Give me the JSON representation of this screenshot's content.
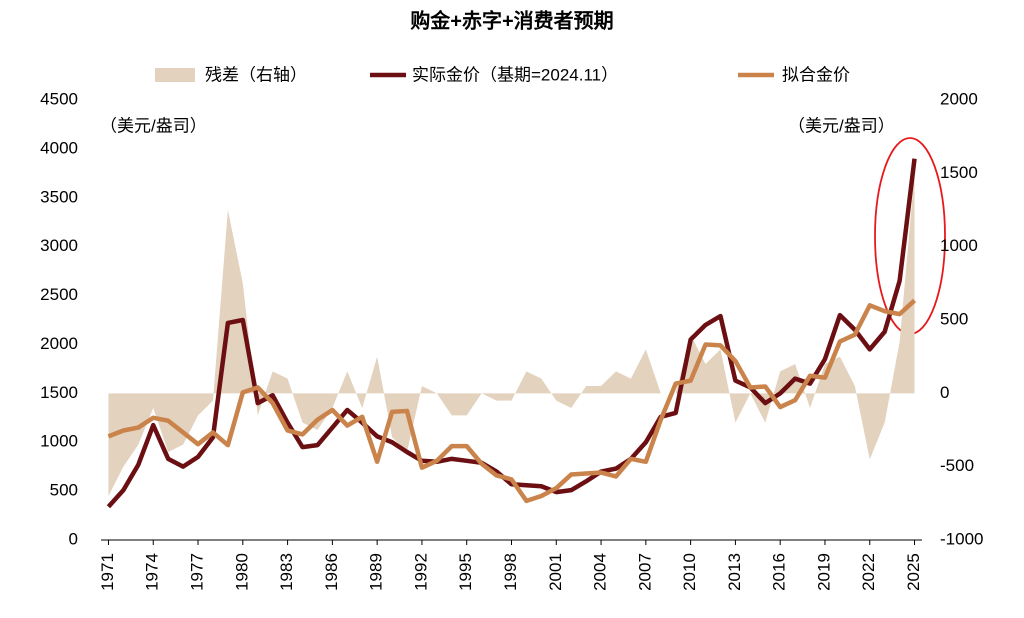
{
  "chart_data": {
    "type": "line",
    "title": "购金+赤字+消费者预期",
    "y_label": "（美元/盎司）",
    "y2_label": "（美元/盎司）",
    "x": [
      1971,
      1972,
      1973,
      1974,
      1975,
      1976,
      1977,
      1978,
      1979,
      1980,
      1981,
      1982,
      1983,
      1984,
      1985,
      1986,
      1987,
      1988,
      1989,
      1990,
      1991,
      1992,
      1993,
      1994,
      1995,
      1996,
      1997,
      1998,
      1999,
      2000,
      2001,
      2002,
      2003,
      2004,
      2005,
      2006,
      2007,
      2008,
      2009,
      2010,
      2011,
      2012,
      2013,
      2014,
      2015,
      2016,
      2017,
      2018,
      2019,
      2020,
      2021,
      2022,
      2023,
      2024,
      2025
    ],
    "xlim": [
      1970.5,
      2025.5
    ],
    "xticks": [
      1971,
      1974,
      1977,
      1980,
      1983,
      1986,
      1989,
      1992,
      1995,
      1998,
      2001,
      2004,
      2007,
      2010,
      2013,
      2016,
      2019,
      2022,
      2025
    ],
    "ylim": [
      0,
      4500
    ],
    "yticks": [
      0,
      500,
      1000,
      1500,
      2000,
      2500,
      3000,
      3500,
      4000,
      4500
    ],
    "y2lim": [
      -1000,
      2000
    ],
    "y2ticks": [
      -1000,
      -500,
      0,
      500,
      1000,
      1500,
      2000
    ],
    "series": [
      {
        "name": "残差（右轴）",
        "type": "area",
        "axis": "y2",
        "color": "#e3d2bd",
        "values": [
          -700,
          -500,
          -350,
          -100,
          -400,
          -350,
          -150,
          -50,
          1250,
          750,
          -150,
          150,
          100,
          -200,
          -250,
          -100,
          150,
          -100,
          250,
          -300,
          -400,
          50,
          0,
          -150,
          -150,
          0,
          -50,
          -50,
          150,
          100,
          -50,
          -100,
          50,
          50,
          150,
          100,
          300,
          0,
          0,
          400,
          200,
          300,
          -200,
          0,
          -200,
          150,
          200,
          -100,
          200,
          250,
          50,
          -450,
          -200,
          350,
          1500
        ]
      },
      {
        "name": "实际金价（基期=2024.11）",
        "color": "#6b0f12",
        "values": [
          340,
          510,
          770,
          1175,
          830,
          750,
          850,
          1050,
          2220,
          2250,
          1400,
          1480,
          1200,
          950,
          970,
          1150,
          1330,
          1200,
          1060,
          1000,
          900,
          810,
          800,
          830,
          810,
          790,
          700,
          570,
          560,
          550,
          490,
          510,
          600,
          700,
          730,
          830,
          1000,
          1260,
          1300,
          2050,
          2200,
          2290,
          1630,
          1560,
          1400,
          1500,
          1650,
          1600,
          1850,
          2300,
          2150,
          1950,
          2130,
          2650,
          3900
        ]
      },
      {
        "name": "拟合金价",
        "color": "#c9834b",
        "values": [
          1060,
          1120,
          1150,
          1250,
          1220,
          1100,
          980,
          1100,
          970,
          1510,
          1560,
          1400,
          1120,
          1080,
          1230,
          1330,
          1170,
          1260,
          800,
          1310,
          1320,
          740,
          810,
          960,
          960,
          780,
          660,
          620,
          400,
          450,
          530,
          670,
          680,
          690,
          650,
          830,
          800,
          1230,
          1600,
          1630,
          2000,
          1990,
          1830,
          1560,
          1570,
          1360,
          1430,
          1680,
          1660,
          2030,
          2100,
          2400,
          2340,
          2310,
          2450
        ]
      }
    ]
  }
}
